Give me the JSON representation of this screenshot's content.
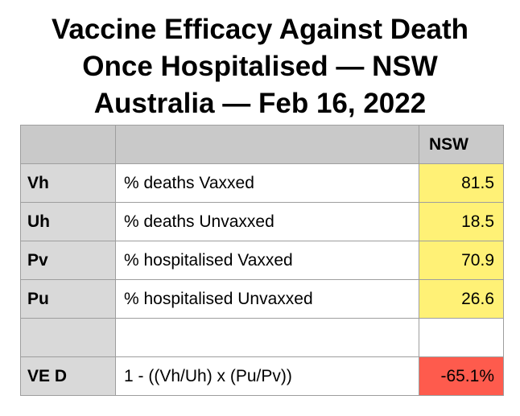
{
  "title": {
    "line1": "Vaccine Efficacy Against Death",
    "line2": "Once Hospitalised — NSW",
    "line3": "Australia — Feb 16, 2022"
  },
  "table": {
    "column_header": "NSW",
    "rows": [
      {
        "key": "Vh",
        "description": "% deaths Vaxxed",
        "value": "81.5"
      },
      {
        "key": "Uh",
        "description": "% deaths Unvaxxed",
        "value": "18.5"
      },
      {
        "key": "Pv",
        "description": "% hospitalised Vaxxed",
        "value": "70.9"
      },
      {
        "key": "Pu",
        "description": "% hospitalised Unvaxxed",
        "value": "26.6"
      },
      {
        "key": "",
        "description": "",
        "value": ""
      },
      {
        "key": "VE D",
        "description": "1 - ((Vh/Uh) x (Pu/Pv))",
        "value": "-65.1%"
      }
    ]
  },
  "colors": {
    "header_gray": "#c9c9c9",
    "key_gray": "#d9d9d9",
    "value_yellow": "#fff176",
    "result_red": "#fe5b4d",
    "border": "#9e9e9e"
  }
}
